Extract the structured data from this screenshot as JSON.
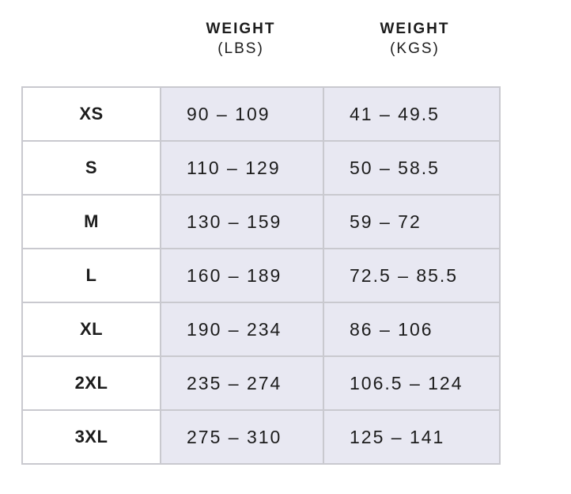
{
  "header": {
    "lbs_title": "WEIGHT",
    "lbs_unit": "(LBS)",
    "kgs_title": "WEIGHT",
    "kgs_unit": "(KGS)"
  },
  "rows": [
    {
      "size": "XS",
      "lbs": "90 – 109",
      "kgs": "41 – 49.5"
    },
    {
      "size": "S",
      "lbs": "110 – 129",
      "kgs": "50 – 58.5"
    },
    {
      "size": "M",
      "lbs": "130 – 159",
      "kgs": "59 – 72"
    },
    {
      "size": "L",
      "lbs": "160 – 189",
      "kgs": "72.5 – 85.5"
    },
    {
      "size": "XL",
      "lbs": "190 – 234",
      "kgs": "86 – 106"
    },
    {
      "size": "2XL",
      "lbs": "235 – 274",
      "kgs": "106.5 – 124"
    },
    {
      "size": "3XL",
      "lbs": "275 – 310",
      "kgs": "125 – 141"
    }
  ],
  "colors": {
    "cell_fill": "#e8e8f2",
    "border": "#c9c9cf",
    "text": "#1c1c1c"
  }
}
